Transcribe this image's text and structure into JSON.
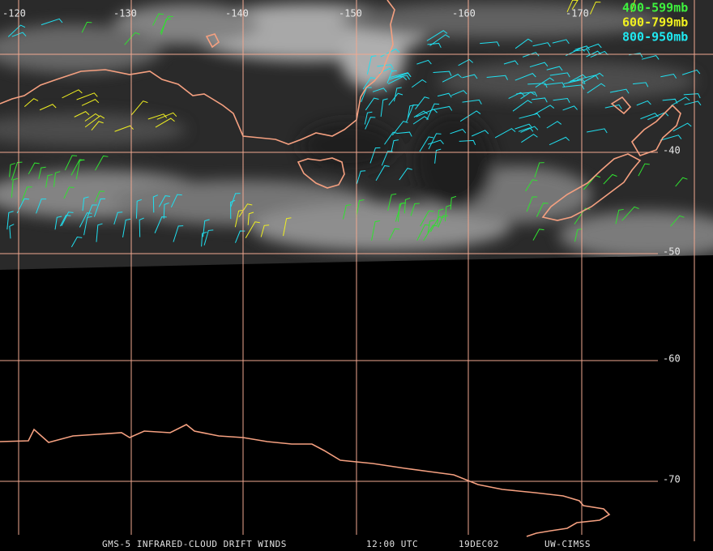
{
  "longitude_labels": [
    "-120",
    "-130",
    "-140",
    "-150",
    "-160",
    "-170"
  ],
  "latitude_labels": [
    "-40",
    "-50",
    "-60",
    "-70"
  ],
  "legend": [
    "400-599mb",
    "600-799mb",
    "800-950mb"
  ],
  "footer": {
    "product": "GMS-5 INFRARED-CLOUD DRIFT WINDS",
    "time": "12:00 UTC",
    "date": "19DEC02",
    "source": "UW-CIMSS"
  }
}
